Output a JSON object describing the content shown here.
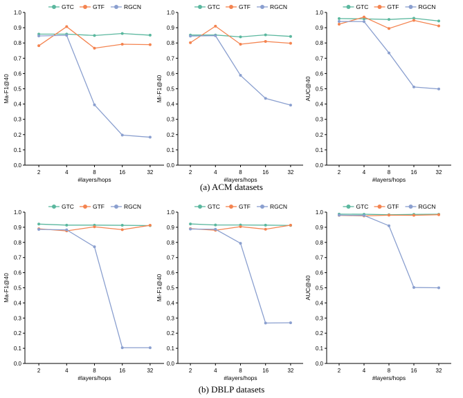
{
  "legend": {
    "labels": [
      "GTC",
      "GTF",
      "RGCN"
    ],
    "colors": [
      "#5ab79e",
      "#f4834f",
      "#8a9fcf"
    ]
  },
  "captions": {
    "acm": "(a) ACM datasets",
    "dblp": "(b) DBLP datasets"
  },
  "chart_data": [
    {
      "type": "line",
      "xlabel": "#layers/hops",
      "ylabel": "Ma-F1@40",
      "categories": [
        "2",
        "4",
        "8",
        "16",
        "32"
      ],
      "yticks": [
        "0.0",
        "0.1",
        "0.2",
        "0.3",
        "0.4",
        "0.5",
        "0.6",
        "0.7",
        "0.8",
        "0.9",
        "1.0"
      ],
      "ylim": [
        0,
        1
      ],
      "legend": "top",
      "series": [
        {
          "name": "GTC",
          "values": [
            0.858,
            0.858,
            0.849,
            0.862,
            0.851
          ]
        },
        {
          "name": "GTF",
          "values": [
            0.782,
            0.907,
            0.766,
            0.792,
            0.789
          ]
        },
        {
          "name": "RGCN",
          "values": [
            0.846,
            0.85,
            0.395,
            0.197,
            0.183
          ]
        }
      ]
    },
    {
      "type": "line",
      "xlabel": "#layers/hops",
      "ylabel": "Mi-F1@40",
      "categories": [
        "2",
        "4",
        "8",
        "16",
        "32"
      ],
      "yticks": [
        "0.0",
        "0.1",
        "0.2",
        "0.3",
        "0.4",
        "0.5",
        "0.6",
        "0.7",
        "0.8",
        "0.9",
        "1.0"
      ],
      "ylim": [
        0,
        1
      ],
      "legend": "top",
      "series": [
        {
          "name": "GTC",
          "values": [
            0.852,
            0.852,
            0.84,
            0.853,
            0.843
          ]
        },
        {
          "name": "GTF",
          "values": [
            0.802,
            0.91,
            0.792,
            0.81,
            0.798
          ]
        },
        {
          "name": "RGCN",
          "values": [
            0.845,
            0.848,
            0.588,
            0.437,
            0.393
          ]
        }
      ]
    },
    {
      "type": "line",
      "xlabel": "#layers/hops",
      "ylabel": "AUC@40",
      "categories": [
        "2",
        "4",
        "8",
        "16",
        "32"
      ],
      "yticks": [
        "0.0",
        "0.1",
        "0.2",
        "0.3",
        "0.4",
        "0.5",
        "0.6",
        "0.7",
        "0.8",
        "0.9",
        "1.0"
      ],
      "ylim": [
        0,
        1
      ],
      "legend": "top",
      "series": [
        {
          "name": "GTC",
          "values": [
            0.96,
            0.958,
            0.954,
            0.962,
            0.944
          ]
        },
        {
          "name": "GTF",
          "values": [
            0.923,
            0.97,
            0.895,
            0.948,
            0.912
          ]
        },
        {
          "name": "RGCN",
          "values": [
            0.941,
            0.94,
            0.735,
            0.512,
            0.499
          ]
        }
      ]
    },
    {
      "type": "line",
      "xlabel": "#layers/hops",
      "ylabel": "Ma-F1@40",
      "categories": [
        "2",
        "4",
        "8",
        "16",
        "32"
      ],
      "yticks": [
        "0.0",
        "0.1",
        "0.2",
        "0.3",
        "0.4",
        "0.5",
        "0.6",
        "0.7",
        "0.8",
        "0.9",
        "1.0"
      ],
      "ylim": [
        0,
        1
      ],
      "legend": "top",
      "series": [
        {
          "name": "GTC",
          "values": [
            0.921,
            0.914,
            0.914,
            0.913,
            0.911
          ]
        },
        {
          "name": "GTF",
          "values": [
            0.89,
            0.876,
            0.903,
            0.884,
            0.913
          ]
        },
        {
          "name": "RGCN",
          "values": [
            0.886,
            0.883,
            0.771,
            0.104,
            0.104
          ]
        }
      ]
    },
    {
      "type": "line",
      "xlabel": "#layers/hops",
      "ylabel": "Mi-F1@40",
      "categories": [
        "2",
        "4",
        "8",
        "16",
        "32"
      ],
      "yticks": [
        "0.0",
        "0.1",
        "0.2",
        "0.3",
        "0.4",
        "0.5",
        "0.6",
        "0.7",
        "0.8",
        "0.9",
        "1.0"
      ],
      "ylim": [
        0,
        1
      ],
      "legend": "top",
      "series": [
        {
          "name": "GTC",
          "values": [
            0.922,
            0.915,
            0.915,
            0.914,
            0.912
          ]
        },
        {
          "name": "GTF",
          "values": [
            0.891,
            0.88,
            0.904,
            0.887,
            0.914
          ]
        },
        {
          "name": "RGCN",
          "values": [
            0.888,
            0.887,
            0.794,
            0.267,
            0.269
          ]
        }
      ]
    },
    {
      "type": "line",
      "xlabel": "#layers/hops",
      "ylabel": "AUC@40",
      "categories": [
        "2",
        "4",
        "8",
        "16",
        "32"
      ],
      "yticks": [
        "0.0",
        "0.1",
        "0.2",
        "0.3",
        "0.4",
        "0.5",
        "0.6",
        "0.7",
        "0.8",
        "0.9",
        "1.0"
      ],
      "ylim": [
        0,
        1
      ],
      "legend": "top",
      "series": [
        {
          "name": "GTC",
          "values": [
            0.987,
            0.986,
            0.983,
            0.985,
            0.986
          ]
        },
        {
          "name": "GTF",
          "values": [
            0.979,
            0.975,
            0.98,
            0.979,
            0.983
          ]
        },
        {
          "name": "RGCN",
          "values": [
            0.98,
            0.978,
            0.91,
            0.502,
            0.5
          ]
        }
      ]
    }
  ]
}
